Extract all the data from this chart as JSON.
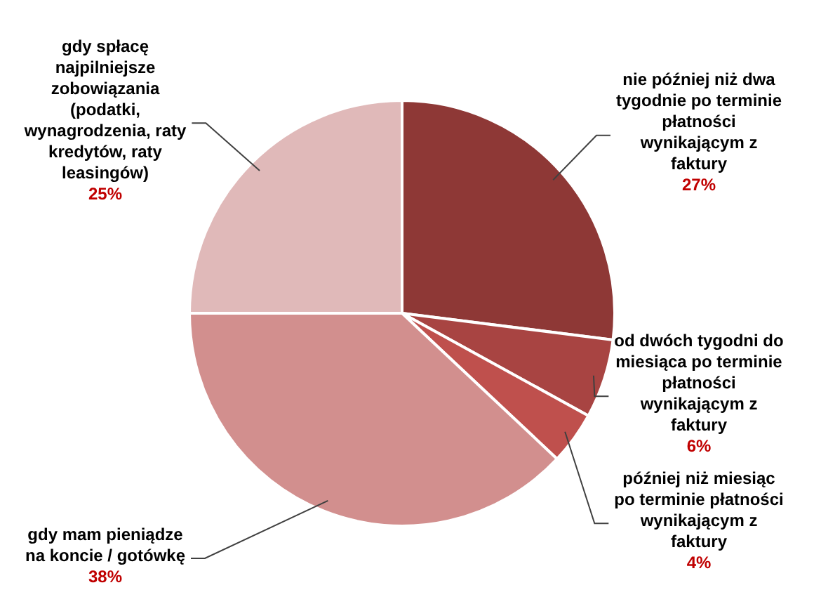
{
  "chart_data": {
    "type": "pie",
    "categories": [
      "nie później niż dwa tygodnie po terminie płatności wynikającym z faktury",
      "od dwóch tygodni do miesiąca po terminie płatności wynikającym z faktury",
      "później niż miesiąc po terminie płatności wynikającym z faktury",
      "gdy mam pieniądze na koncie / gotówkę",
      "gdy spłacę najpilniejsze zobowiązania (podatki, wynagrodzenia, raty kredytów, raty leasingów)"
    ],
    "values": [
      27,
      6,
      4,
      38,
      25
    ],
    "colors": [
      "#8e3836",
      "#a84442",
      "#bf504d",
      "#d28f8e",
      "#e0b9b9"
    ],
    "value_labels": [
      "27%",
      "6%",
      "4%",
      "38%",
      "25%"
    ],
    "legend": false
  }
}
